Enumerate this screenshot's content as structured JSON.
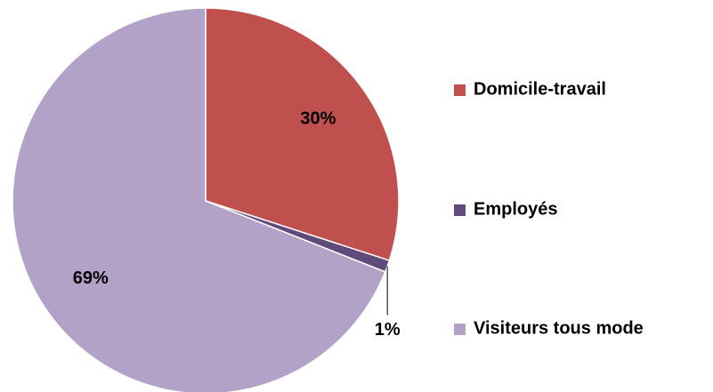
{
  "chart_data": {
    "type": "pie",
    "categories": [
      "Domicile-travail",
      "Employés",
      "Visiteurs tous mode"
    ],
    "values": [
      30,
      1,
      69
    ],
    "value_labels": [
      "30%",
      "1%",
      "69%"
    ],
    "colors": [
      "#c0504d",
      "#604a7b",
      "#b3a2c7"
    ],
    "legend": "right"
  }
}
